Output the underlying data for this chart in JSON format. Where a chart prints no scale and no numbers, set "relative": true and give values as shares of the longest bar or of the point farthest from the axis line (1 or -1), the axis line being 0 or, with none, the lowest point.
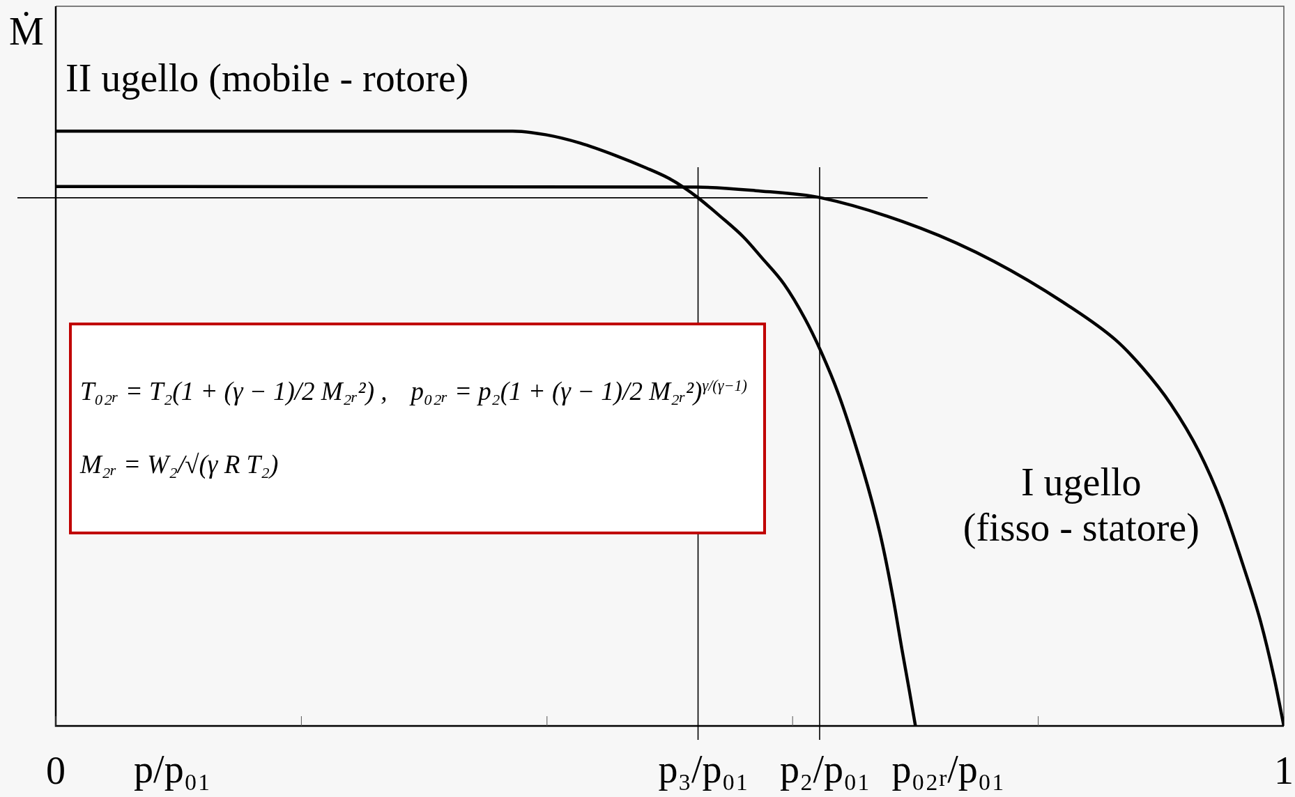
{
  "chart_data": {
    "type": "line",
    "xlabel": "p/p₀₁",
    "ylabel": "Ṁ",
    "relative": true,
    "xlim": [
      0,
      1
    ],
    "xticks": [
      0,
      {
        "value": 0.2,
        "label": null
      },
      {
        "value": 0.4,
        "label": null
      },
      {
        "value": 0.6,
        "label": null
      },
      {
        "value": 0.8,
        "label": null
      },
      1
    ],
    "series": [
      {
        "name": "II ugello (mobile - rotore)",
        "color": "#000000",
        "x": [
          0,
          0.372,
          0.399,
          0.427,
          0.456,
          0.481,
          0.499,
          0.511,
          0.523,
          0.541,
          0.56,
          0.575,
          0.593,
          0.61,
          0.623,
          0.637,
          0.65,
          0.664,
          0.673,
          0.682,
          0.689,
          0.695,
          0.7
        ],
        "values": [
          1,
          1,
          0.994,
          0.98,
          0.959,
          0.938,
          0.921,
          0.906,
          0.888,
          0.857,
          0.822,
          0.787,
          0.743,
          0.685,
          0.63,
          0.56,
          0.48,
          0.382,
          0.307,
          0.213,
          0.129,
          0.06,
          0
        ]
      },
      {
        "name": "I ugello\n(fisso - statore)",
        "color": "#000000",
        "x": [
          0,
          0.522,
          0.57,
          0.623,
          0.704,
          0.764,
          0.825,
          0.863,
          0.885,
          0.908,
          0.931,
          0.949,
          0.967,
          0.981,
          0.992,
          1
        ],
        "values": [
          0.907,
          0.906,
          0.9,
          0.888,
          0.837,
          0.781,
          0.706,
          0.649,
          0.602,
          0.541,
          0.461,
          0.377,
          0.269,
          0.176,
          0.082,
          0
        ]
      }
    ],
    "ref_lines": [
      {
        "axis": "x",
        "value": 0.523,
        "label": "p₃/p₀₁"
      },
      {
        "axis": "x",
        "value": 0.622,
        "label": "p₂/p₀₁"
      },
      {
        "axis": "y",
        "value": 0.888
      }
    ],
    "annotations": [
      {
        "text": "p₀₂ᵣ/p₀₁",
        "x": 0.7,
        "y": 0
      },
      "T₀₂ᵣ = T₂(1 + (γ − 1)/2 M₂ᵣ²) ,",
      "p₀₂ᵣ = p₂(1 + (γ − 1)/2 M₂ᵣ²)$^{γ/(γ−1)}$",
      "M₂ᵣ = W₂/√(γ R T₂)"
    ],
    "marker": "none",
    "line_style": "solid"
  }
}
